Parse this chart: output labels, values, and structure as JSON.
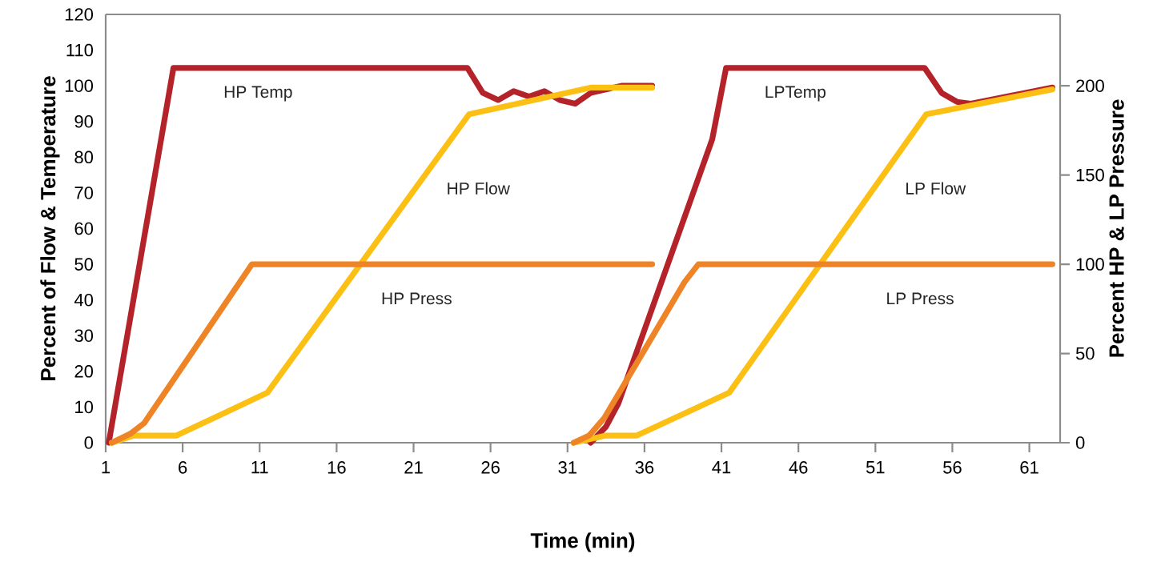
{
  "chart_data": {
    "type": "line",
    "xlabel": "Time (min)",
    "ylabel": "Percent of Flow & Temperature",
    "y2label": "Percent HP & LP Pressure",
    "xlim": [
      1,
      63
    ],
    "xticks": [
      1,
      6,
      11,
      16,
      21,
      26,
      31,
      36,
      41,
      46,
      51,
      56,
      61
    ],
    "ylim": [
      0,
      120
    ],
    "yticks": [
      0,
      10,
      20,
      30,
      40,
      50,
      60,
      70,
      80,
      90,
      100,
      110,
      120
    ],
    "y2lim": [
      0,
      240
    ],
    "y2ticks": [
      0,
      50,
      100,
      150,
      200
    ],
    "line_style": "solid",
    "marker": "none",
    "series": [
      {
        "name": "HP Temp",
        "color": "#b5232a",
        "x": [
          1.2,
          5.4,
          24.5,
          25.5,
          26.5,
          27.5,
          28.5,
          29.5,
          30.5,
          31.5,
          32.5,
          34.5,
          36.5
        ],
        "values": [
          0,
          105,
          105,
          98,
          96,
          98.5,
          97,
          98.5,
          96,
          95,
          98,
          100,
          100
        ]
      },
      {
        "name": "HP Flow",
        "color": "#fcbf14",
        "x": [
          1.4,
          2.8,
          5.6,
          11.5,
          24.6,
          32.5,
          36.5
        ],
        "values": [
          0,
          2,
          2,
          14,
          92,
          99.5,
          99.5
        ]
      },
      {
        "name": "HP Press",
        "color": "#ef8427",
        "axis": "y2",
        "x": [
          1.4,
          2.6,
          3.5,
          10.5,
          36.5
        ],
        "values": [
          0,
          5,
          11,
          100,
          100
        ]
      },
      {
        "name": "LPTemp",
        "color": "#b5232a",
        "x": [
          32.5,
          33.5,
          34.3,
          40.4,
          41.3,
          54.2,
          55.3,
          56.3,
          57.2,
          62.5
        ],
        "values": [
          0,
          4.5,
          11,
          85,
          105,
          105,
          98,
          95.5,
          95,
          99.5
        ]
      },
      {
        "name": "LP Flow",
        "color": "#fcbf14",
        "x": [
          31.4,
          33.5,
          35.5,
          41.5,
          54.3,
          62.5
        ],
        "values": [
          0,
          2,
          2,
          14,
          92,
          99
        ]
      },
      {
        "name": "LP Press",
        "color": "#ef8427",
        "axis": "y2",
        "x": [
          31.4,
          32.4,
          33.4,
          38.6,
          39.5,
          62.5
        ],
        "values": [
          0,
          4,
          14,
          90,
          100,
          100
        ]
      }
    ]
  }
}
